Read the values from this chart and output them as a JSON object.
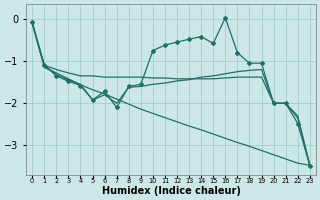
{
  "background_color": "#cce8e6",
  "grid_color": "#aacfcc",
  "line_color": "#1e7068",
  "xlabel": "Humidex (Indice chaleur)",
  "xlim": [
    -0.5,
    23.5
  ],
  "ylim": [
    -3.7,
    0.35
  ],
  "yticks": [
    0,
    -1,
    -2,
    -3
  ],
  "xtick_labels": [
    "0",
    "1",
    "2",
    "3",
    "4",
    "5",
    "6",
    "7",
    "8",
    "9",
    "10",
    "11",
    "12",
    "13",
    "14",
    "15",
    "16",
    "17",
    "18",
    "19",
    "20",
    "21",
    "22",
    "23"
  ],
  "series": [
    {
      "x": [
        0,
        1,
        2,
        3,
        4,
        5,
        6,
        7,
        8,
        9,
        10,
        11,
        12,
        13,
        14,
        15,
        16,
        17,
        18,
        19,
        20,
        21,
        22,
        23
      ],
      "y": [
        -0.1,
        -1.15,
        -1.28,
        -1.42,
        -1.56,
        -1.68,
        -1.78,
        -1.9,
        -2.02,
        -2.14,
        -2.24,
        -2.34,
        -2.44,
        -2.54,
        -2.63,
        -2.73,
        -2.83,
        -2.93,
        -3.02,
        -3.12,
        -3.22,
        -3.32,
        -3.42,
        -3.47
      ],
      "marker": false
    },
    {
      "x": [
        0,
        1,
        2,
        3,
        4,
        5,
        6,
        7,
        8,
        9,
        10,
        11,
        12,
        13,
        14,
        15,
        16,
        17,
        18,
        19,
        20,
        21,
        22,
        23
      ],
      "y": [
        -0.1,
        -1.1,
        -1.2,
        -1.28,
        -1.35,
        -1.35,
        -1.38,
        -1.38,
        -1.38,
        -1.38,
        -1.4,
        -1.4,
        -1.42,
        -1.42,
        -1.42,
        -1.42,
        -1.4,
        -1.38,
        -1.38,
        -1.38,
        -2.0,
        -2.0,
        -2.3,
        -3.47
      ],
      "marker": false
    },
    {
      "x": [
        0,
        1,
        2,
        3,
        4,
        5,
        6,
        7,
        8,
        9,
        10,
        11,
        12,
        13,
        14,
        15,
        16,
        17,
        18,
        19,
        20,
        21,
        22,
        23
      ],
      "y": [
        -0.1,
        -1.1,
        -1.32,
        -1.45,
        -1.55,
        -1.92,
        -1.8,
        -2.0,
        -1.62,
        -1.6,
        -1.55,
        -1.52,
        -1.47,
        -1.44,
        -1.38,
        -1.35,
        -1.3,
        -1.25,
        -1.22,
        -1.2,
        -2.0,
        -2.0,
        -2.35,
        -3.47
      ],
      "marker": false
    },
    {
      "x": [
        0,
        1,
        2,
        3,
        4,
        5,
        6,
        7,
        8,
        9,
        10,
        11,
        12,
        13,
        14,
        15,
        16,
        17,
        18,
        19,
        20,
        21,
        22,
        23
      ],
      "y": [
        -0.08,
        -1.1,
        -1.35,
        -1.48,
        -1.58,
        -1.92,
        -1.72,
        -2.1,
        -1.6,
        -1.55,
        -0.75,
        -0.62,
        -0.55,
        -0.48,
        -0.42,
        -0.58,
        0.03,
        -0.8,
        -1.05,
        -1.05,
        -2.0,
        -2.0,
        -2.48,
        -3.48
      ],
      "marker": true
    }
  ]
}
